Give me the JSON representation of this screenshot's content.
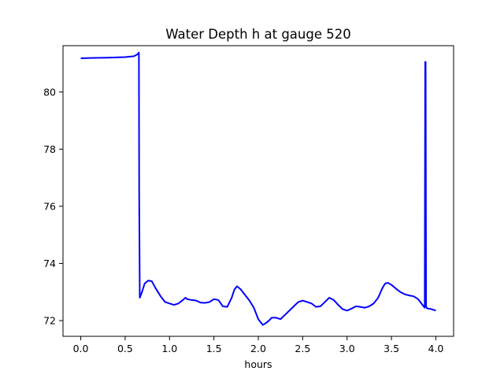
{
  "chart_data": {
    "type": "line",
    "title": "Water Depth h at gauge 520",
    "xlabel": "hours",
    "ylabel": "",
    "xlim": [
      -0.2,
      4.2
    ],
    "ylim": [
      71.45,
      81.62
    ],
    "x_ticks": [
      0.0,
      0.5,
      1.0,
      1.5,
      2.0,
      2.5,
      3.0,
      3.5,
      4.0
    ],
    "x_tick_labels": [
      "0.0",
      "0.5",
      "1.0",
      "1.5",
      "2.0",
      "2.5",
      "3.0",
      "3.5",
      "4.0"
    ],
    "y_ticks": [
      72,
      74,
      76,
      78,
      80
    ],
    "y_tick_labels": [
      "72",
      "74",
      "76",
      "78",
      "80"
    ],
    "grid": false,
    "line_color": "#0000ff",
    "series": [
      {
        "x": [
          0.0,
          0.1,
          0.3,
          0.5,
          0.6,
          0.64,
          0.655,
          0.658,
          0.665,
          0.69,
          0.72,
          0.76,
          0.8,
          0.84,
          0.9,
          0.95,
          1.0,
          1.05,
          1.1,
          1.15,
          1.18,
          1.2,
          1.25,
          1.3,
          1.35,
          1.4,
          1.45,
          1.5,
          1.55,
          1.6,
          1.65,
          1.7,
          1.73,
          1.76,
          1.8,
          1.85,
          1.9,
          1.95,
          2.0,
          2.05,
          2.08,
          2.12,
          2.15,
          2.2,
          2.25,
          2.3,
          2.35,
          2.4,
          2.45,
          2.5,
          2.55,
          2.6,
          2.65,
          2.7,
          2.75,
          2.8,
          2.85,
          2.9,
          2.95,
          3.0,
          3.05,
          3.1,
          3.15,
          3.2,
          3.25,
          3.3,
          3.35,
          3.4,
          3.43,
          3.46,
          3.5,
          3.55,
          3.6,
          3.65,
          3.7,
          3.75,
          3.8,
          3.85,
          3.875,
          3.88,
          3.885,
          3.89,
          3.9,
          3.95,
          4.0
        ],
        "y": [
          81.18,
          81.19,
          81.2,
          81.22,
          81.25,
          81.32,
          81.38,
          76.5,
          72.8,
          73.0,
          73.3,
          73.4,
          73.38,
          73.15,
          72.85,
          72.65,
          72.6,
          72.55,
          72.6,
          72.72,
          72.8,
          72.75,
          72.72,
          72.7,
          72.63,
          72.62,
          72.65,
          72.75,
          72.72,
          72.5,
          72.48,
          72.8,
          73.08,
          73.2,
          73.1,
          72.9,
          72.7,
          72.45,
          72.05,
          71.85,
          71.9,
          72.0,
          72.1,
          72.1,
          72.05,
          72.2,
          72.35,
          72.5,
          72.65,
          72.7,
          72.65,
          72.6,
          72.48,
          72.5,
          72.65,
          72.8,
          72.72,
          72.55,
          72.4,
          72.35,
          72.42,
          72.5,
          72.48,
          72.45,
          72.5,
          72.6,
          72.8,
          73.15,
          73.3,
          73.32,
          73.25,
          73.12,
          73.0,
          72.92,
          72.88,
          72.85,
          72.75,
          72.55,
          72.45,
          81.05,
          81.05,
          72.5,
          72.43,
          72.4,
          72.35
        ]
      }
    ]
  }
}
